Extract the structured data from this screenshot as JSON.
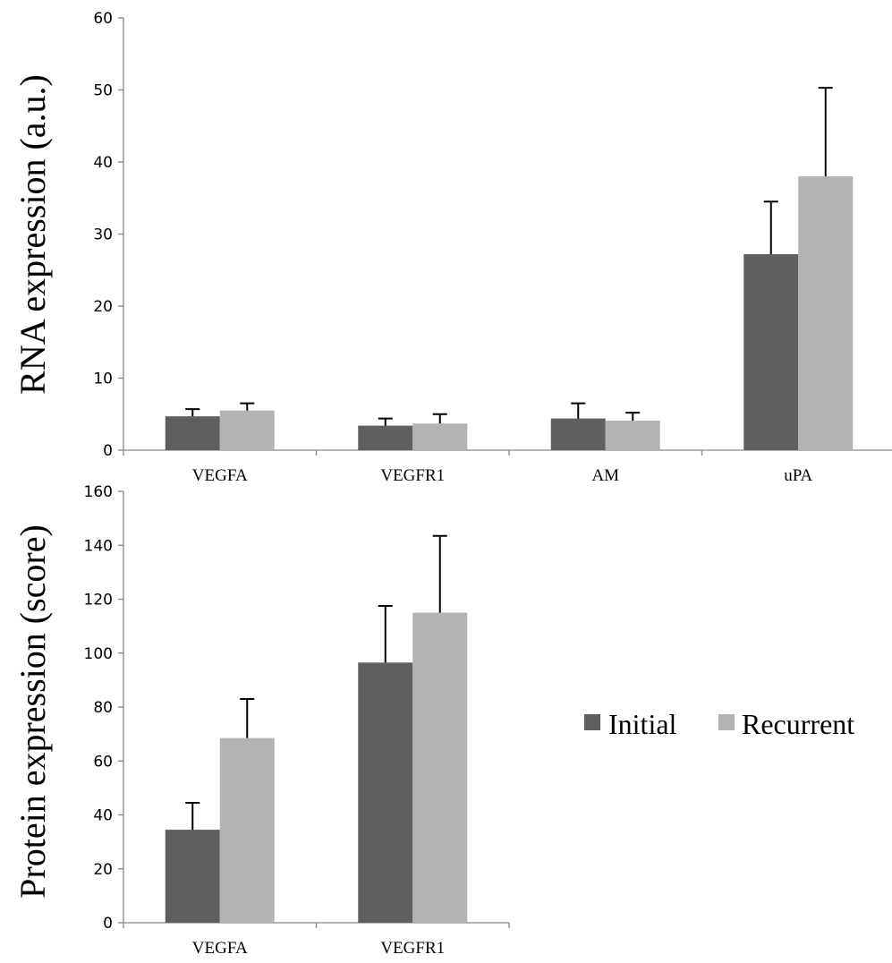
{
  "legend": {
    "entries": [
      "Initial",
      "Recurrent"
    ],
    "placement": "right of lower chart"
  },
  "colors": {
    "initial": "#5f5f5f",
    "recurrent": "#b3b3b3",
    "axis": "#868686"
  },
  "chart_data": [
    {
      "type": "bar",
      "title": "",
      "xlabel": "",
      "ylabel": "RNA expression (a.u.)",
      "categories": [
        "VEGFA",
        "VEGFR1",
        "AM",
        "uPA"
      ],
      "ylim": [
        0,
        60
      ],
      "yticks": [
        0,
        10,
        20,
        30,
        40,
        50,
        60
      ],
      "grid": false,
      "series": [
        {
          "name": "Initial",
          "values": [
            4.7,
            3.4,
            4.4,
            27.2
          ],
          "error": [
            1.0,
            1.0,
            2.1,
            7.3
          ]
        },
        {
          "name": "Recurrent",
          "values": [
            5.5,
            3.7,
            4.1,
            38.0
          ],
          "error": [
            1.0,
            1.3,
            1.1,
            12.3
          ]
        }
      ]
    },
    {
      "type": "bar",
      "title": "",
      "xlabel": "",
      "ylabel": "Protein expression (score)",
      "categories": [
        "VEGFA",
        "VEGFR1"
      ],
      "ylim": [
        0,
        160
      ],
      "yticks": [
        0,
        20,
        40,
        60,
        80,
        100,
        120,
        140,
        160
      ],
      "grid": false,
      "series": [
        {
          "name": "Initial",
          "values": [
            34.5,
            96.5
          ],
          "error": [
            10.0,
            21.0
          ]
        },
        {
          "name": "Recurrent",
          "values": [
            68.5,
            115.0
          ],
          "error": [
            14.5,
            28.5
          ]
        }
      ]
    }
  ]
}
